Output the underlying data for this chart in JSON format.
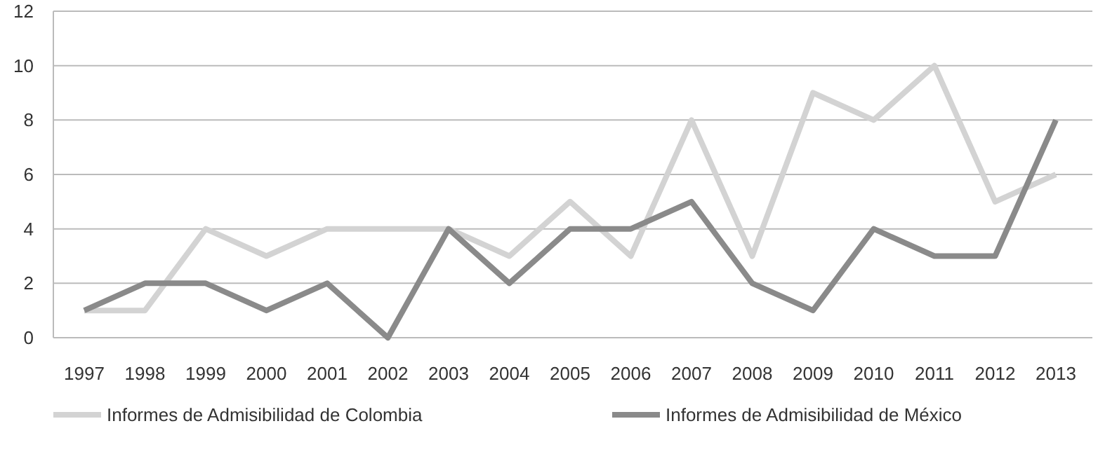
{
  "chart_data": {
    "type": "line",
    "categories": [
      "1997",
      "1998",
      "1999",
      "2000",
      "2001",
      "2002",
      "2003",
      "2004",
      "2005",
      "2006",
      "2007",
      "2008",
      "2009",
      "2010",
      "2011",
      "2012",
      "2013"
    ],
    "series": [
      {
        "name": "Informes de Admisibilidad de Colombia",
        "color": "#d3d3d3",
        "values": [
          1,
          1,
          4,
          3,
          4,
          4,
          4,
          3,
          5,
          3,
          8,
          3,
          9,
          8,
          10,
          5,
          6
        ]
      },
      {
        "name": "Informes de Admisibilidad de México",
        "color": "#8a8a8a",
        "values": [
          1,
          2,
          2,
          1,
          2,
          0,
          4,
          2,
          4,
          4,
          5,
          2,
          1,
          4,
          3,
          3,
          8
        ]
      }
    ],
    "ylim": [
      0,
      12
    ],
    "yticks": [
      0,
      2,
      4,
      6,
      8,
      10,
      12
    ],
    "grid": "y",
    "legend": "bottom",
    "marker": "none",
    "line_style": "solid"
  }
}
